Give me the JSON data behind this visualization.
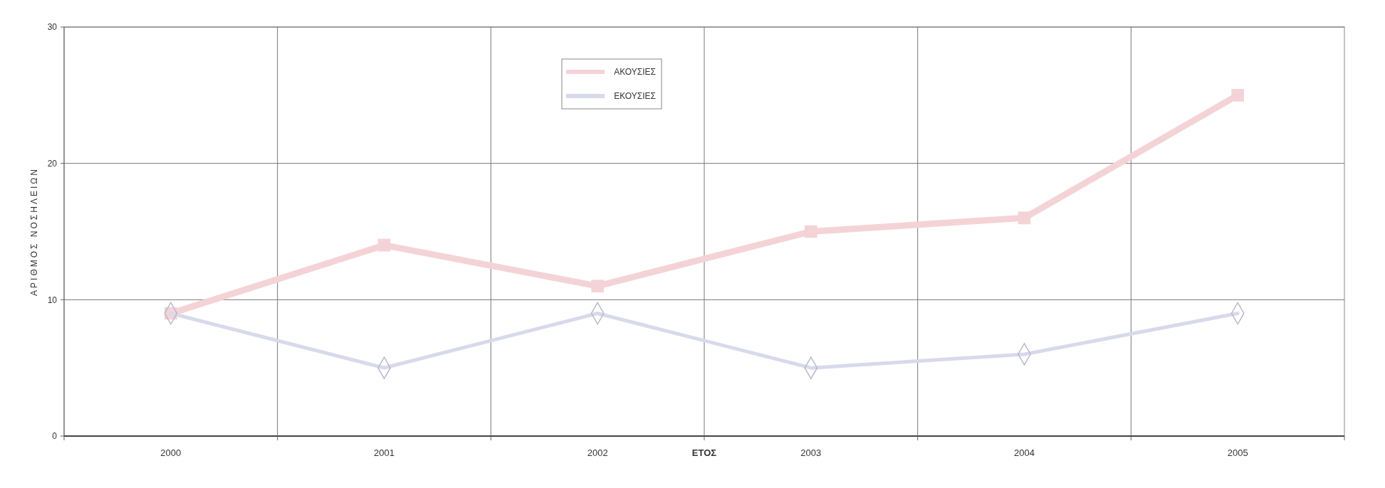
{
  "chart_data": {
    "type": "line",
    "xlabel": "ΕΤΟΣ",
    "ylabel": "ΑΡΙΘΜΟΣ ΝΟΣΗΛΕΙΩΝ",
    "categories": [
      "2000",
      "2001",
      "2002",
      "2003",
      "2004",
      "2005"
    ],
    "series": [
      {
        "name": "ΑΚΟΥΣΙΕΣ",
        "color": "#f4d3d7",
        "marker": "square",
        "values": [
          9,
          14,
          11,
          15,
          16,
          25
        ]
      },
      {
        "name": "ΕΚΟΥΣΙΕΣ",
        "color": "#d9d9ec",
        "marker": "diamond",
        "values": [
          9,
          5,
          9,
          5,
          6,
          9
        ]
      }
    ],
    "ylim": [
      0,
      30
    ],
    "yticks": [
      0,
      10,
      20,
      30
    ],
    "grid": true,
    "legend": "top"
  }
}
